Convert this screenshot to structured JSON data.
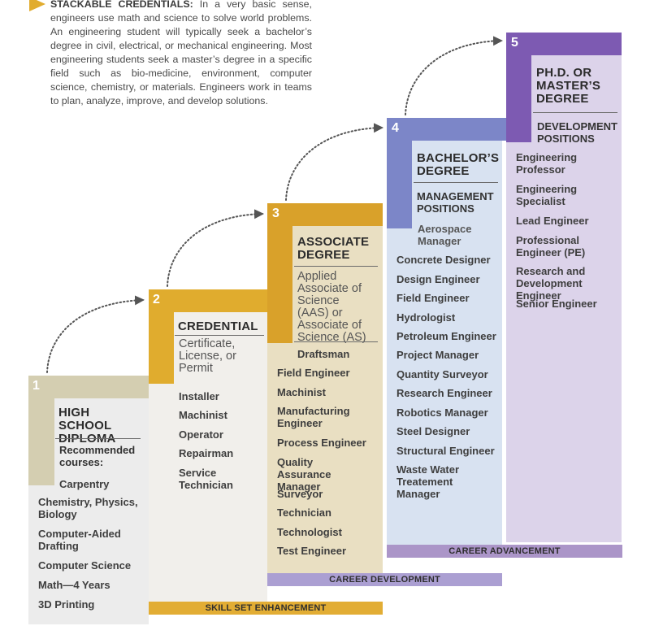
{
  "intro": {
    "lead": "STACKABLE CREDENTIALS:",
    "body": " In a very basic sense, engineers use math and science to solve world problems. An engineering student will typically seek a bachelor’s degree in civil, electrical, or mechanical engineering. Most engineering students seek a master’s degree in a specific field such as bio-medicine, environment, computer science, chemistry, or materials. Engineers work in teams to plan, analyze, improve, and develop solutions."
  },
  "steps": [
    {
      "number": "1",
      "title": "HIGH SCHOOL DIPLOMA",
      "subhead": "Recommended courses:",
      "items": [
        "Carpentry",
        "Chemistry, Physics, Biology",
        "Computer-Aided Drafting",
        "Computer Science",
        "Math—4 Years",
        "3D Printing"
      ]
    },
    {
      "number": "2",
      "title": "CREDENTIAL",
      "subtitle": "Certificate, License, or Permit",
      "items": [
        "Installer",
        "Machinist",
        "Operator",
        "Repairman",
        "Service Technician"
      ]
    },
    {
      "number": "3",
      "title": "ASSOCIATE DEGREE",
      "subtitle": "Applied Associate of Science (AAS) or Associate of Science (AS)",
      "items": [
        "Draftsman",
        "Field Engineer",
        "Machinist",
        "Manufacturing Engineer",
        "Process Engineer",
        "Quality Assurance Manager",
        "Surveyor",
        "Technician",
        "Technologist",
        "Test Engineer"
      ]
    },
    {
      "number": "4",
      "title": "BACHELOR’S DEGREE",
      "subhead": "MANAGEMENT POSITIONS",
      "items": [
        "Aerospace Manager",
        "Concrete Designer",
        "Design Engineer",
        "Field Engineer",
        "Hydrologist",
        "Petroleum Engineer",
        "Project Manager",
        "Quantity Surveyor",
        "Research Engineer",
        "Robotics Manager",
        "Steel Designer",
        "Structural Engineer",
        "Waste Water Treatement Manager"
      ]
    },
    {
      "number": "5",
      "title": "PH.D. OR MASTER’S DEGREE",
      "subhead": "DEVELOPMENT POSITIONS",
      "items": [
        "Engineering Professor",
        "Engineering Specialist",
        "Lead Engineer",
        "Professional Engineer (PE)",
        "Research and Development Engineer",
        "Senior Engineer"
      ]
    }
  ],
  "bands": {
    "skill": "SKILL SET ENHANCEMENT",
    "development": "CAREER DEVELOPMENT",
    "advancement": "CAREER ADVANCEMENT"
  },
  "colors": {
    "step1": "#d4ceb1",
    "step1_light": "#ececec",
    "step2": "#e0ac2e",
    "step2_light": "#f1efeb",
    "step3": "#d9a12a",
    "step3_light": "#e9dfc2",
    "step4": "#7c86c8",
    "step4_light": "#d8e2f1",
    "step5": "#7d5ab2",
    "step5_light": "#dcd3ea",
    "intro_arrow": "#e1ac2f"
  }
}
